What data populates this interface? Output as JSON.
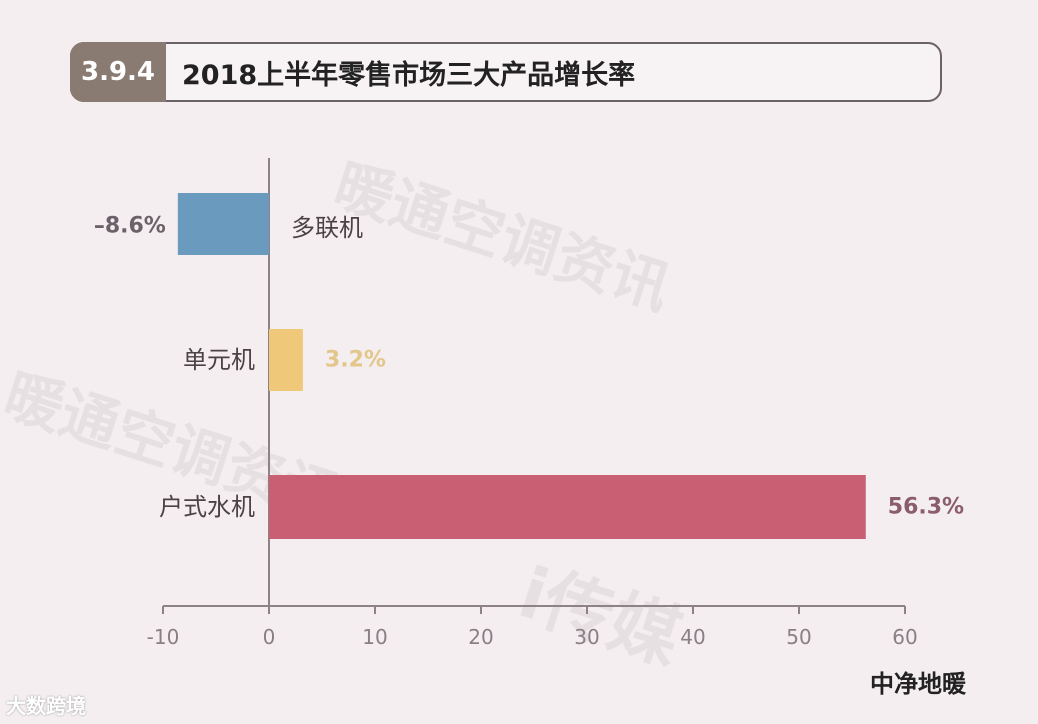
{
  "header": {
    "badge": "3.9.4",
    "title": "2018上半年零售市场三大产品增长率"
  },
  "footer": {
    "left_mark": "大数跨境",
    "right_mark": "中净地暖"
  },
  "chart_data": {
    "type": "bar",
    "orientation": "horizontal",
    "categories": [
      "多联机",
      "单元机",
      "户式水机"
    ],
    "values": [
      -8.6,
      3.2,
      56.3
    ],
    "value_labels": [
      "–8.6%",
      "3.2%",
      "56.3%"
    ],
    "xlim": [
      -10,
      60
    ],
    "xticks": [
      "-10",
      "0",
      "10",
      "20",
      "30",
      "40",
      "50",
      "60"
    ],
    "colors": [
      "#6a9bbf",
      "#f0c87a",
      "#c85f72"
    ],
    "label_colors": [
      "#6a6268",
      "#e3c68a",
      "#8a5c6c"
    ],
    "grid": false
  }
}
